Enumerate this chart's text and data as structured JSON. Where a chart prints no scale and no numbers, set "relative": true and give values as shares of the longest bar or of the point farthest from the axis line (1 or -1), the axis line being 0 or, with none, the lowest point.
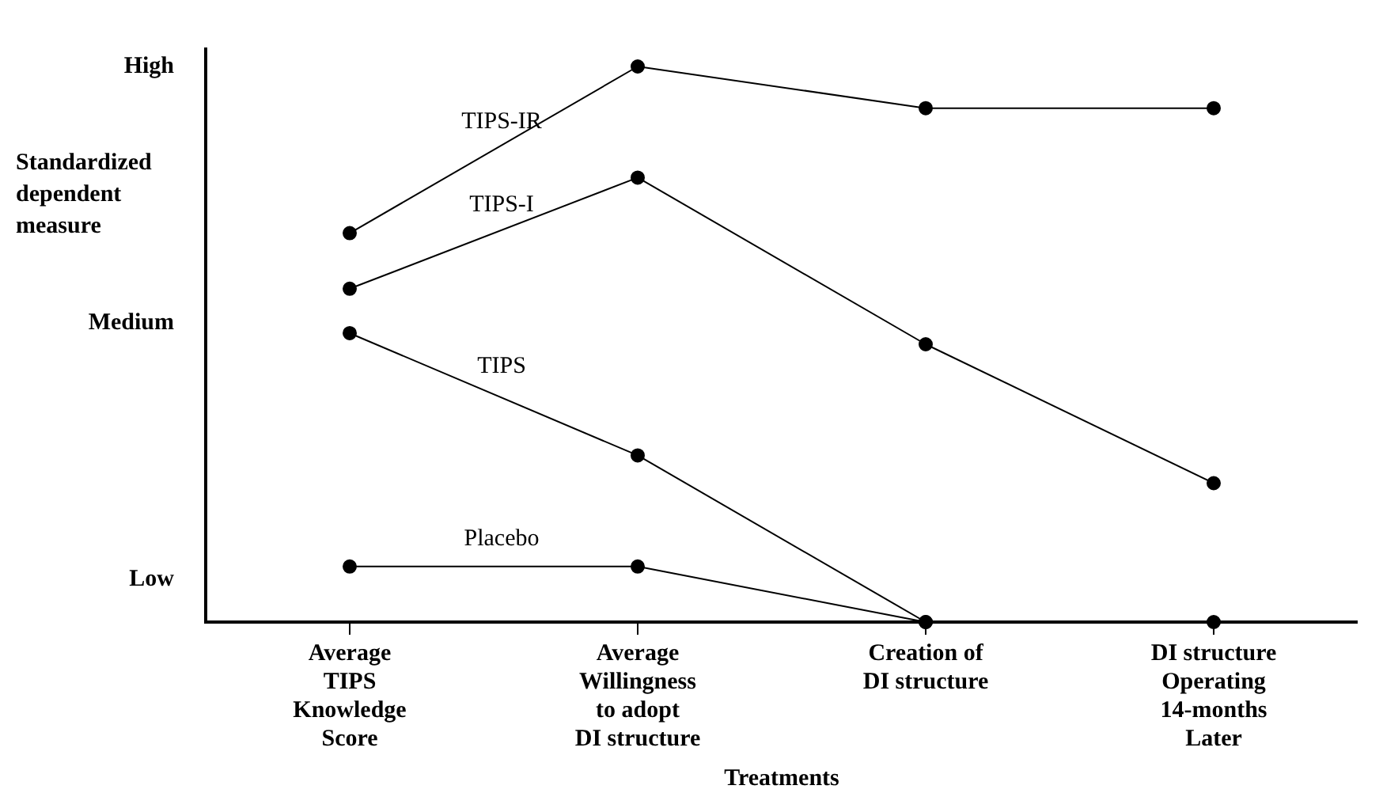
{
  "chart_data": {
    "type": "line",
    "relative": true,
    "xlabel": "Treatments",
    "ylabel": "Standardized dependent measure",
    "categories": [
      "Average\nTIPS\nKnowledge\nScore",
      "Average\nWillingness\nto adopt\nDI structure",
      "Creation of\nDI structure",
      "DI structure\nOperating\n14-months\nLater"
    ],
    "series": [
      {
        "name": "TIPS-IR",
        "color": "#000000",
        "values": [
          0.7,
          1.0,
          0.925,
          0.925
        ]
      },
      {
        "name": "TIPS-I",
        "color": "#000000",
        "values": [
          0.6,
          0.8,
          0.5,
          0.25
        ]
      },
      {
        "name": "TIPS",
        "color": "#000000",
        "values": [
          0.52,
          0.3,
          0,
          null
        ]
      },
      {
        "name": "Placebo",
        "color": "#000000",
        "values": [
          0.1,
          0.1,
          0,
          null
        ]
      },
      {
        "type": "scatter",
        "color": "#000000",
        "values": [
          null,
          null,
          null,
          0
        ]
      }
    ],
    "annotations": [
      "High",
      "Medium",
      "Low"
    ],
    "marker": "circle",
    "legend": false,
    "grid": false
  }
}
